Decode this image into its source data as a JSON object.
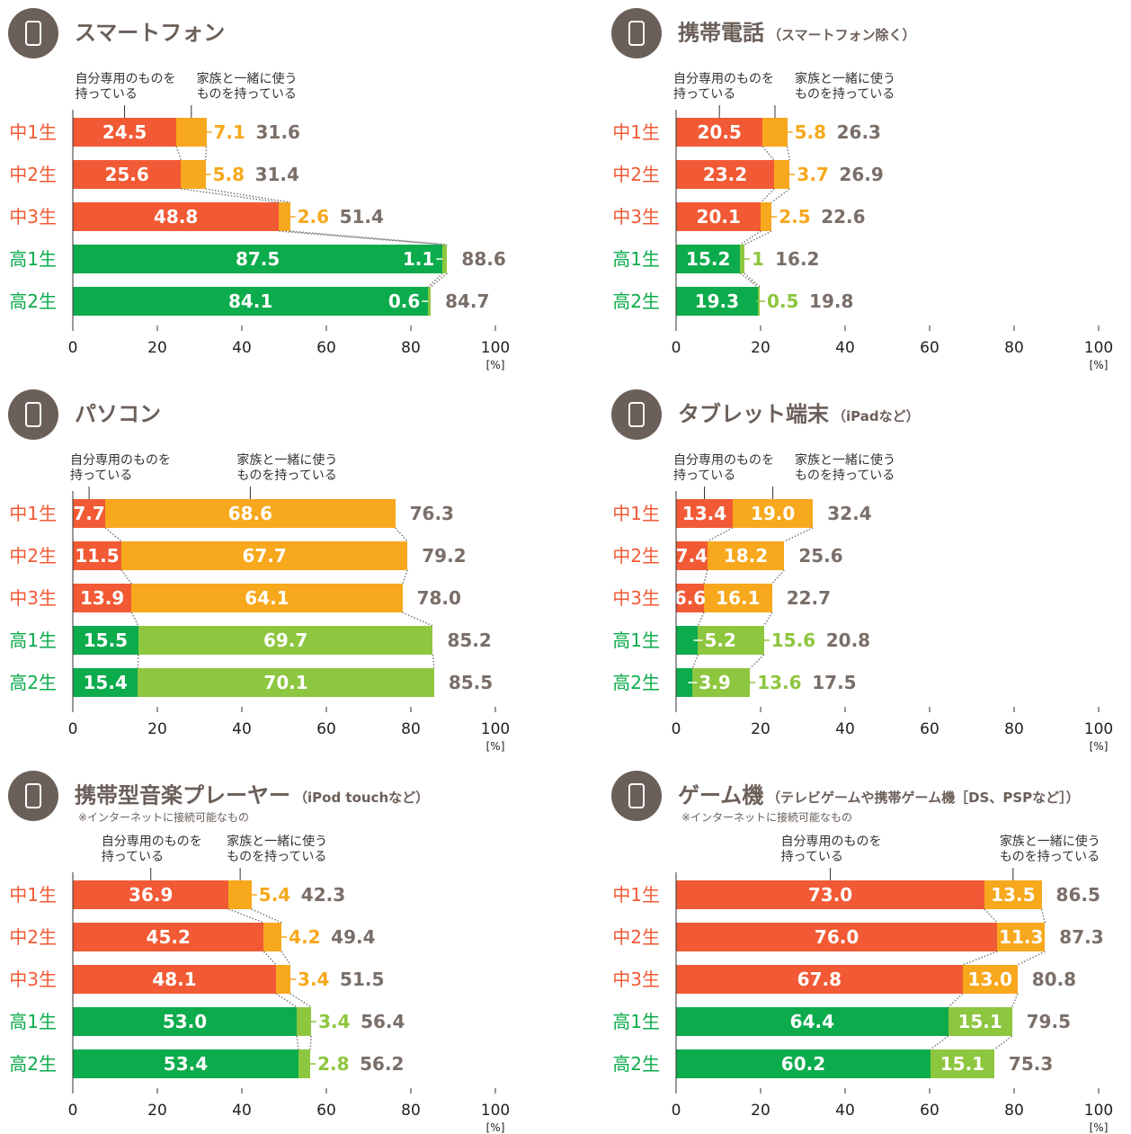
{
  "chart_data": [
    {
      "type": "stacked-bar",
      "title": "スマートフォン",
      "categories": [
        "中1生",
        "中2生",
        "中3生",
        "高1生",
        "高2生"
      ],
      "series": [
        {
          "name": "自分専用のものを\n持っている",
          "colors": [
            "#f15a35",
            "#f15a35",
            "#f15a35",
            "#0cab4c",
            "#0cab4c"
          ],
          "values": [
            24.5,
            25.6,
            48.8,
            87.5,
            84.1
          ]
        },
        {
          "name": "家族と一緒に使う\nものを持っている",
          "colors": [
            "#f7a81d",
            "#f7a81d",
            "#f7a81d",
            "#8dc63f",
            "#8dc63f"
          ],
          "values": [
            7.1,
            5.8,
            2.6,
            1.1,
            0.6
          ]
        }
      ],
      "totals": [
        31.6,
        31.4,
        51.4,
        88.6,
        84.7
      ],
      "xlim": [
        0,
        100
      ],
      "xticks": [
        0,
        20,
        40,
        60,
        80,
        100
      ],
      "unit": "[%]"
    },
    {
      "type": "stacked-bar",
      "title": "携帯電話",
      "subtitle": "（スマートフォン除く）",
      "categories": [
        "中1生",
        "中2生",
        "中3生",
        "高1生",
        "高2生"
      ],
      "series": [
        {
          "name": "自分専用のものを\n持っている",
          "colors": [
            "#f15a35",
            "#f15a35",
            "#f15a35",
            "#0cab4c",
            "#0cab4c"
          ],
          "values": [
            20.5,
            23.2,
            20.1,
            15.2,
            19.3
          ]
        },
        {
          "name": "家族と一緒に使う\nものを持っている",
          "colors": [
            "#f7a81d",
            "#f7a81d",
            "#f7a81d",
            "#8dc63f",
            "#8dc63f"
          ],
          "values": [
            5.8,
            3.7,
            2.5,
            1.0,
            0.5
          ]
        }
      ],
      "totals": [
        26.3,
        26.9,
        22.6,
        16.2,
        19.8
      ],
      "xlim": [
        0,
        100
      ],
      "xticks": [
        0,
        20,
        40,
        60,
        80,
        100
      ],
      "unit": "[%]"
    },
    {
      "type": "stacked-bar",
      "title": "パソコン",
      "categories": [
        "中1生",
        "中2生",
        "中3生",
        "高1生",
        "高2生"
      ],
      "series": [
        {
          "name": "自分専用のものを\n持っている",
          "colors": [
            "#f15a35",
            "#f15a35",
            "#f15a35",
            "#0cab4c",
            "#0cab4c"
          ],
          "values": [
            7.7,
            11.5,
            13.9,
            15.5,
            15.4
          ]
        },
        {
          "name": "家族と一緒に使う\nものを持っている",
          "colors": [
            "#f7a81d",
            "#f7a81d",
            "#f7a81d",
            "#8dc63f",
            "#8dc63f"
          ],
          "values": [
            68.6,
            67.7,
            64.1,
            69.7,
            70.1
          ]
        }
      ],
      "totals": [
        76.3,
        79.2,
        78.0,
        85.2,
        85.5
      ],
      "total_labels": [
        "76.3",
        "79.2",
        "78.0",
        "85.2",
        "85.5"
      ],
      "xlim": [
        0,
        100
      ],
      "xticks": [
        0,
        20,
        40,
        60,
        80,
        100
      ],
      "unit": "[%]"
    },
    {
      "type": "stacked-bar",
      "title": "タブレット端末",
      "subtitle": "（iPadなど）",
      "categories": [
        "中1生",
        "中2生",
        "中3生",
        "高1生",
        "高2生"
      ],
      "series": [
        {
          "name": "自分専用のものを\n持っている",
          "colors": [
            "#f15a35",
            "#f15a35",
            "#f15a35",
            "#0cab4c",
            "#0cab4c"
          ],
          "values": [
            13.4,
            7.4,
            6.6,
            5.2,
            3.9
          ]
        },
        {
          "name": "家族と一緒に使う\nものを持っている",
          "colors": [
            "#f7a81d",
            "#f7a81d",
            "#f7a81d",
            "#8dc63f",
            "#8dc63f"
          ],
          "values": [
            19.0,
            18.2,
            16.1,
            15.6,
            13.6
          ],
          "value_labels": [
            "19.0",
            "18.2",
            "16.1",
            "15.6",
            "13.6"
          ]
        }
      ],
      "totals": [
        32.4,
        25.6,
        22.7,
        20.8,
        17.5
      ],
      "xlim": [
        0,
        100
      ],
      "xticks": [
        0,
        20,
        40,
        60,
        80,
        100
      ],
      "unit": "[%]"
    },
    {
      "type": "stacked-bar",
      "title": "携帯型音楽プレーヤー",
      "subtitle": "（iPod touchなど）",
      "note": "※インターネットに接続可能なもの",
      "categories": [
        "中1生",
        "中2生",
        "中3生",
        "高1生",
        "高2生"
      ],
      "series": [
        {
          "name": "自分専用のものを\n持っている",
          "colors": [
            "#f15a35",
            "#f15a35",
            "#f15a35",
            "#0cab4c",
            "#0cab4c"
          ],
          "values": [
            36.9,
            45.2,
            48.1,
            53.0,
            53.4
          ],
          "value_labels": [
            "36.9",
            "45.2",
            "48.1",
            "53.0",
            "53.4"
          ]
        },
        {
          "name": "家族と一緒に使う\nものを持っている",
          "colors": [
            "#f7a81d",
            "#f7a81d",
            "#f7a81d",
            "#8dc63f",
            "#8dc63f"
          ],
          "values": [
            5.4,
            4.2,
            3.4,
            3.4,
            2.8
          ]
        }
      ],
      "totals": [
        42.3,
        49.4,
        51.5,
        56.4,
        56.2
      ],
      "xlim": [
        0,
        100
      ],
      "xticks": [
        0,
        20,
        40,
        60,
        80,
        100
      ],
      "unit": "[%]"
    },
    {
      "type": "stacked-bar",
      "title": "ゲーム機",
      "subtitle": "（テレビゲームや携帯ゲーム機［DS、PSPなど］）",
      "note": "※インターネットに接続可能なもの",
      "categories": [
        "中1生",
        "中2生",
        "中3生",
        "高1生",
        "高2生"
      ],
      "series": [
        {
          "name": "自分専用のものを\n持っている",
          "colors": [
            "#f15a35",
            "#f15a35",
            "#f15a35",
            "#0cab4c",
            "#0cab4c"
          ],
          "values": [
            73.0,
            76.0,
            67.8,
            64.4,
            60.2
          ],
          "value_labels": [
            "73.0",
            "76.0",
            "67.8",
            "64.4",
            "60.2"
          ]
        },
        {
          "name": "家族と一緒に使う\nものを持っている",
          "colors": [
            "#f7a81d",
            "#f7a81d",
            "#f7a81d",
            "#8dc63f",
            "#8dc63f"
          ],
          "values": [
            13.5,
            11.3,
            13.0,
            15.1,
            15.1
          ],
          "value_labels": [
            "13.5",
            "11.3",
            "13.0",
            "15.1",
            "15.1"
          ]
        }
      ],
      "totals": [
        86.5,
        87.3,
        80.8,
        79.5,
        75.3
      ],
      "xlim": [
        0,
        100
      ],
      "xticks": [
        0,
        20,
        40,
        60,
        80,
        100
      ],
      "unit": "[%]"
    }
  ]
}
